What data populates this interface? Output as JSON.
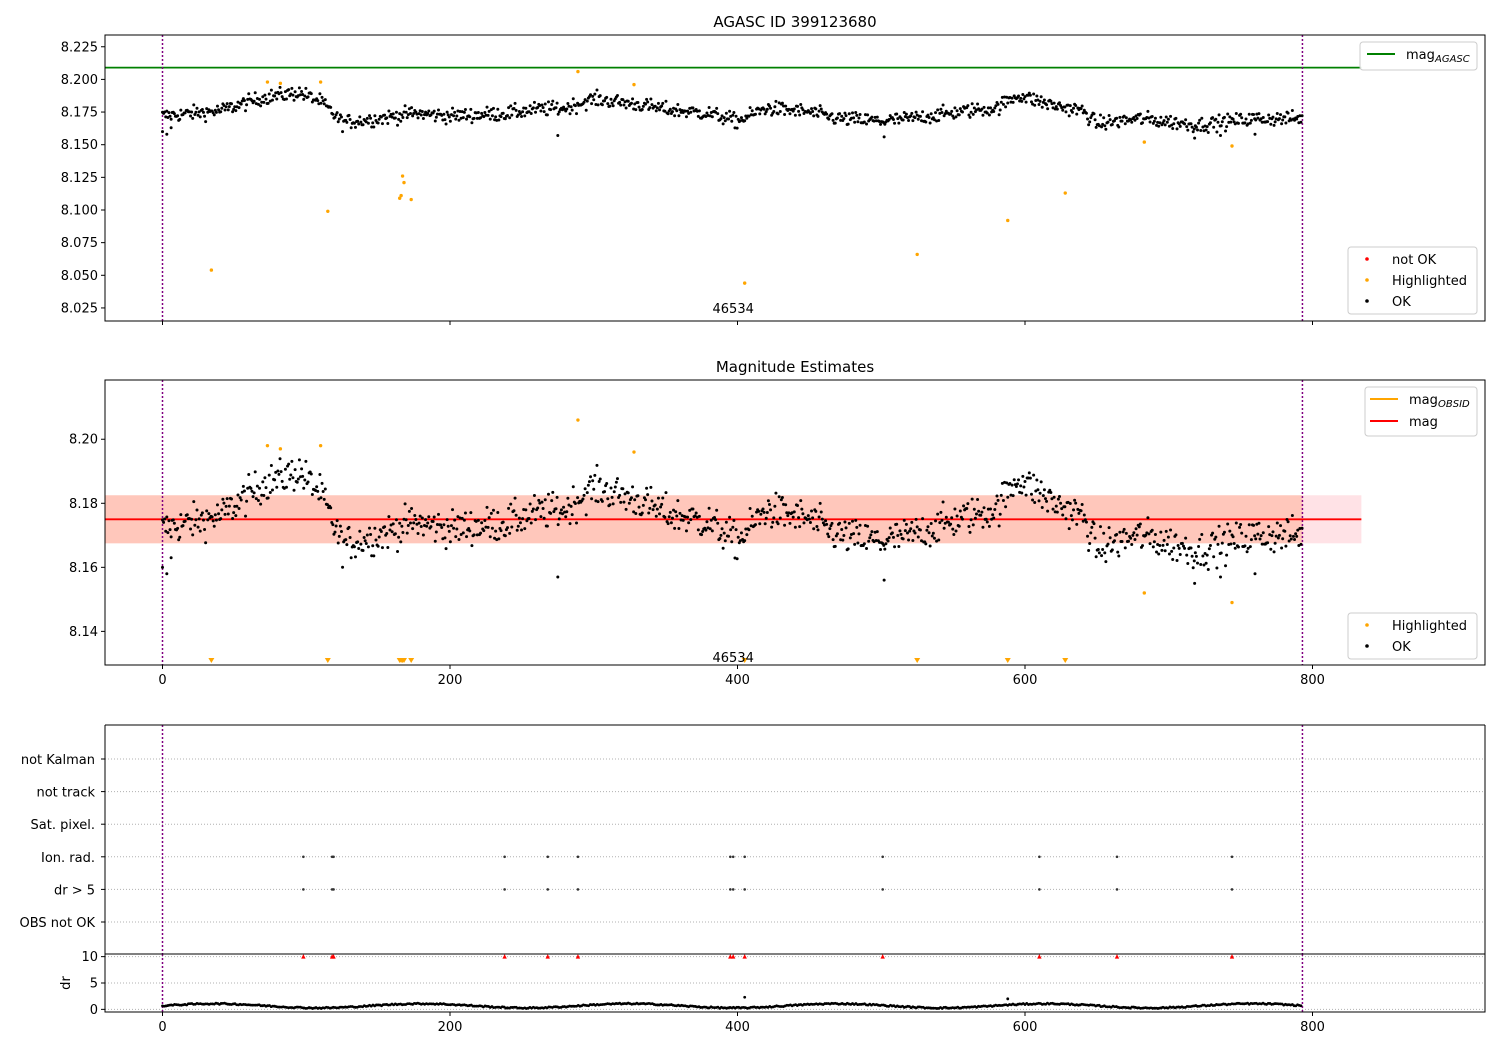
{
  "figure": {
    "width": 1500,
    "height": 1050,
    "background": "#ffffff"
  },
  "colors": {
    "ok": "#000000",
    "highlighted": "#ffa500",
    "not_ok": "#ff0000",
    "agasc_line": "#008000",
    "obsid_line": "#ffa500",
    "mag_line": "#ff0000",
    "band_outer": "#ffb6c1",
    "band_inner": "#ffa07a",
    "obs_boundary": "#800080",
    "grid": "#b0b0b0"
  },
  "chart_data": [
    {
      "id": "top",
      "type": "scatter",
      "title": "AGASC ID 399123680",
      "xlim": [
        -40,
        920
      ],
      "ylim": [
        8.015,
        8.234
      ],
      "yticks": [
        8.025,
        8.05,
        8.075,
        8.1,
        8.125,
        8.15,
        8.175,
        8.2,
        8.225
      ],
      "ytick_labels": [
        "8.025",
        "8.050",
        "8.075",
        "8.100",
        "8.125",
        "8.150",
        "8.175",
        "8.200",
        "8.225"
      ],
      "xticks": [
        0,
        200,
        400,
        600,
        800
      ],
      "xtick_labels": [
        "0",
        "200",
        "400",
        "600",
        "800"
      ],
      "hlines": [
        {
          "y": 8.209,
          "x0": -40,
          "x1": 834,
          "color": "#008000",
          "series": "mag_agasc"
        }
      ],
      "vlines": [
        0,
        793
      ],
      "annotation": {
        "text": "46534",
        "x": 397,
        "y": 8.025
      },
      "series": [
        {
          "key": "ok",
          "name": "OK",
          "color": "#000000",
          "generator": "mag_ok"
        },
        {
          "key": "highlighted",
          "name": "Highlighted",
          "color": "#ffa500",
          "x": [
            34,
            73,
            82,
            110,
            115,
            165,
            166,
            167,
            168,
            173,
            289,
            328,
            405,
            525,
            588,
            628,
            683,
            744
          ],
          "y": [
            8.054,
            8.198,
            8.197,
            8.198,
            8.099,
            8.109,
            8.111,
            8.126,
            8.121,
            8.108,
            8.206,
            8.196,
            8.044,
            8.066,
            8.092,
            8.113,
            8.152,
            8.149
          ]
        }
      ],
      "legend_line": {
        "position": "upper right",
        "label": "mag",
        "sub": "AGASC",
        "color": "#008000"
      },
      "legend_markers": {
        "position": "lower right",
        "entries": [
          {
            "label": "not OK",
            "color": "#ff0000"
          },
          {
            "label": "Highlighted",
            "color": "#ffa500"
          },
          {
            "label": "OK",
            "color": "#000000"
          }
        ]
      }
    },
    {
      "id": "middle",
      "type": "scatter",
      "title": "Magnitude Estimates",
      "xlim": [
        -40,
        920
      ],
      "ylim": [
        8.1295,
        8.2185
      ],
      "yticks": [
        8.14,
        8.16,
        8.18,
        8.2
      ],
      "ytick_labels": [
        "8.14",
        "8.16",
        "8.18",
        "8.20"
      ],
      "xticks": [
        0,
        200,
        400,
        600,
        800
      ],
      "xtick_labels": [
        "0",
        "200",
        "400",
        "600",
        "800"
      ],
      "band_outer": {
        "y0": 8.1675,
        "y1": 8.1825,
        "x0": -40,
        "x1": 834
      },
      "band_inner": {
        "y0": 8.1675,
        "y1": 8.1825,
        "x0": -40,
        "x1": 793
      },
      "mag_line": {
        "y": 8.175,
        "x0": -40,
        "x1": 834
      },
      "vlines": [
        0,
        793
      ],
      "annotation": {
        "text": "46534",
        "x": 397,
        "y": 8.132
      },
      "series": [
        {
          "key": "ok",
          "name": "OK",
          "color": "#000000",
          "generator": "mag_ok"
        },
        {
          "key": "highlighted",
          "name": "Highlighted",
          "color": "#ffa500",
          "x": [
            73,
            82,
            110,
            289,
            328,
            683,
            744
          ],
          "y": [
            8.198,
            8.197,
            8.198,
            8.206,
            8.196,
            8.152,
            8.149
          ]
        },
        {
          "key": "below_range",
          "name": "",
          "color": "#ffa500",
          "marker": "down-triangle",
          "x": [
            34,
            115,
            165,
            166,
            167,
            168,
            173,
            405,
            525,
            588,
            628
          ]
        }
      ],
      "legend_line": {
        "position": "upper right",
        "entries": [
          {
            "label": "mag",
            "sub": "OBSID",
            "color": "#ffa500"
          },
          {
            "label": "mag",
            "sub": "",
            "color": "#ff0000"
          }
        ]
      },
      "legend_markers": {
        "position": "lower right",
        "entries": [
          {
            "label": "Highlighted",
            "color": "#ffa500"
          },
          {
            "label": "OK",
            "color": "#000000"
          }
        ]
      }
    },
    {
      "id": "flags",
      "type": "scatter",
      "title": "",
      "categories": [
        "OBS not OK",
        "dr > 5",
        "Ion. rad.",
        "Sat. pixel.",
        "not track",
        "not Kalman"
      ],
      "xlim": [
        -40,
        920
      ],
      "grid": true,
      "vlines": [
        0,
        793
      ],
      "flag_points": {
        "dr > 5": [
          98,
          118,
          119,
          238,
          268,
          289,
          395,
          397,
          405,
          501,
          610,
          664,
          744
        ],
        "Ion. rad.": [
          98,
          118,
          119,
          238,
          268,
          289,
          395,
          397,
          405,
          501,
          610,
          664,
          744
        ]
      }
    },
    {
      "id": "dr",
      "type": "scatter",
      "ylabel": "dr",
      "xlim": [
        -40,
        920
      ],
      "ylim": [
        -0.5,
        10.5
      ],
      "yticks": [
        0,
        5,
        10
      ],
      "ytick_labels": [
        "0",
        "5",
        "10"
      ],
      "xticks": [
        0,
        200,
        400,
        600,
        800
      ],
      "xtick_labels": [
        "0",
        "200",
        "400",
        "600",
        "800"
      ],
      "vlines": [
        0,
        793
      ],
      "clipped_markers": {
        "y": 10,
        "color": "#ff0000",
        "x": [
          98,
          118,
          119,
          238,
          268,
          289,
          395,
          397,
          405,
          501,
          610,
          664,
          744
        ]
      },
      "extra_points": {
        "x": [
          405,
          588
        ],
        "y": [
          2.3,
          2.0
        ]
      },
      "series": [
        {
          "key": "ok",
          "name": "",
          "color": "#000000",
          "generator": "dr"
        }
      ]
    }
  ]
}
